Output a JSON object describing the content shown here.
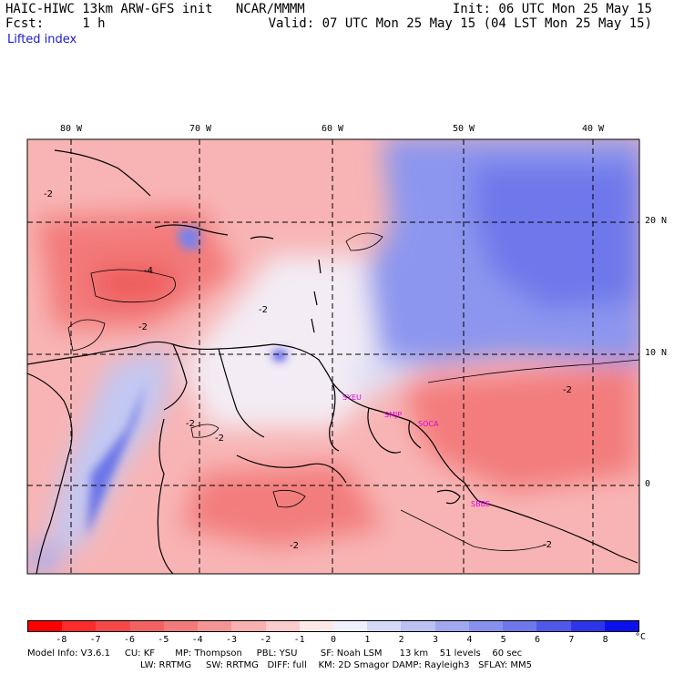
{
  "header": {
    "model": "HAIC-HIWC 13km ARW-GFS init",
    "org": "NCAR/MMMM",
    "init": "Init: 06 UTC Mon 25 May 15",
    "fcst_label": "Fcst:",
    "fcst_value": "1 h",
    "valid": "Valid: 07 UTC Mon 25 May 15 (04 LST Mon 25 May 15)",
    "variable": "Lifted index"
  },
  "map": {
    "lon_labels": [
      "80 W",
      "70 W",
      "60 W",
      "50 W",
      "40 W"
    ],
    "lat_labels": [
      "20 N",
      "10 N",
      "0"
    ],
    "contour_labels": [
      "-4",
      "-2",
      "-2",
      "-2",
      "-2",
      "-2",
      "-2",
      "-2",
      "-2"
    ],
    "sites": [
      "SYEU",
      "SMJP",
      "SOCA",
      "SBBE"
    ],
    "colors": {
      "neg_strong": "#ff2020",
      "neg_mid": "#f47a7a",
      "neg_light": "#f9b2b2",
      "neutral": "#fcefef",
      "pos_light": "#cfd3f6",
      "pos_mid": "#8e98ee",
      "pos_strong": "#0b14ee",
      "coast": "#000000"
    }
  },
  "colorbar": {
    "labels": [
      "-8",
      "-7",
      "-6",
      "-5",
      "-4",
      "-3",
      "-2",
      "-1",
      "0",
      "1",
      "2",
      "3",
      "4",
      "5",
      "6",
      "7",
      "8"
    ],
    "unit": "°C",
    "colors": [
      "#ff0000",
      "#ff2a2a",
      "#f64848",
      "#f26262",
      "#f17a7a",
      "#f59494",
      "#f8b0b0",
      "#fbcccc",
      "#fde8e8",
      "#eef0fc",
      "#d6d9f6",
      "#bcc1f3",
      "#a1a8ef",
      "#8890ed",
      "#6e78eb",
      "#5058ea",
      "#2d35ea",
      "#0a10ee"
    ]
  },
  "footer": {
    "line1": "Model Info: V3.6.1     CU: KF       MP: Thompson     PBL: YSU        SF: Noah LSM      13 km    51 levels    60 sec",
    "line2": "LW: RRTMG     SW: RRTMG   DIFF: full    KM: 2D Smagor DAMP: Rayleigh3   SFLAY: MM5"
  }
}
